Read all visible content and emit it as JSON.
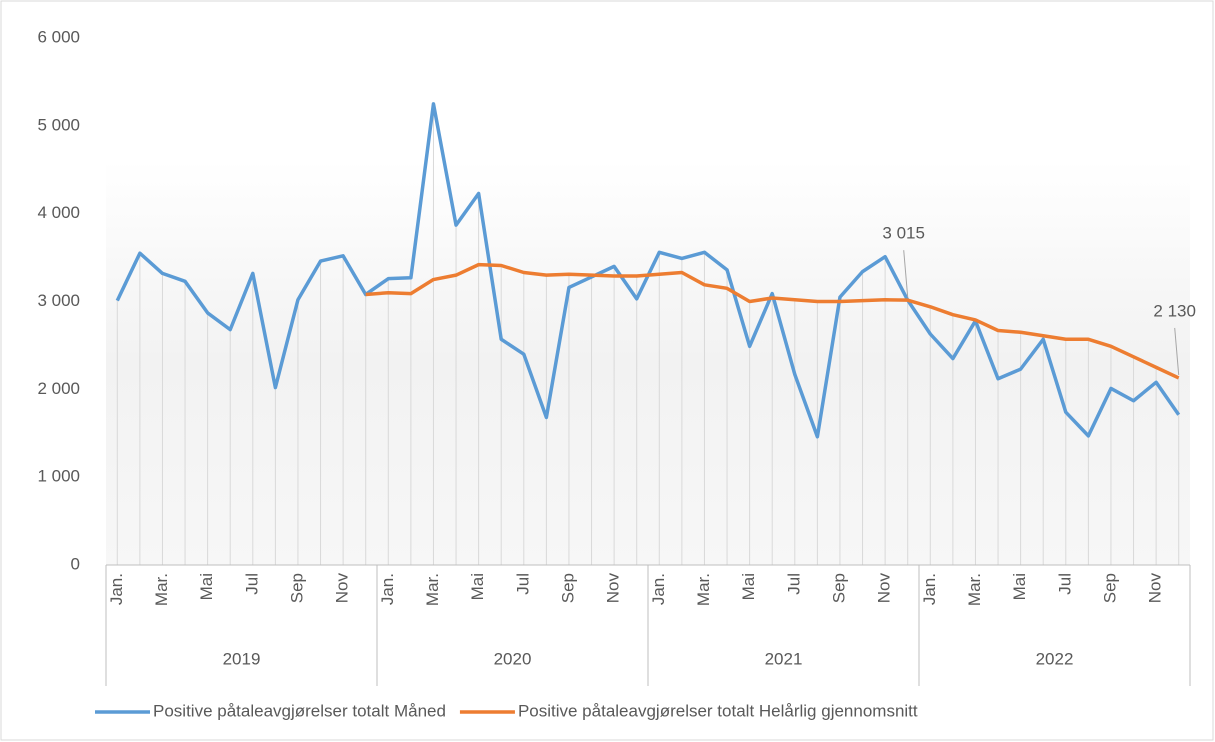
{
  "chart_data": {
    "type": "line",
    "categories": [
      "Jan.",
      null,
      "Mar.",
      null,
      "Mai",
      null,
      "Jul",
      null,
      "Sep",
      null,
      "Nov",
      null,
      "Jan.",
      null,
      "Mar.",
      null,
      "Mai",
      null,
      "Jul",
      null,
      "Sep",
      null,
      "Nov",
      null,
      "Jan.",
      null,
      "Mar.",
      null,
      "Mai",
      null,
      "Jul",
      null,
      "Sep",
      null,
      "Nov",
      null,
      "Jan.",
      null,
      "Mar.",
      null,
      "Mai",
      null,
      "Jul",
      null,
      "Sep",
      null,
      "Nov",
      null
    ],
    "year_groups": [
      "2019",
      "2020",
      "2021",
      "2022"
    ],
    "series": [
      {
        "name": "Positive påtaleavgjørelser totalt Måned",
        "color": "#5b9bd5",
        "values": [
          3010,
          3550,
          3320,
          3230,
          2870,
          2680,
          3320,
          2020,
          3020,
          3460,
          3520,
          3080,
          3260,
          3270,
          5250,
          3870,
          4230,
          2570,
          2400,
          1680,
          3160,
          3280,
          3400,
          3030,
          3560,
          3490,
          3560,
          3360,
          2490,
          3090,
          2170,
          1460,
          3050,
          3340,
          3510,
          3015,
          2630,
          2350,
          2780,
          2120,
          2230,
          2570,
          1740,
          1470,
          2010,
          1870,
          2080,
          1710
        ]
      },
      {
        "name": "Positive påtaleavgjørelser totalt Helårlig gjennomsnitt",
        "color": "#ed7d31",
        "values": [
          null,
          null,
          null,
          null,
          null,
          null,
          null,
          null,
          null,
          null,
          null,
          3080,
          3100,
          3090,
          3250,
          3300,
          3420,
          3410,
          3330,
          3300,
          3310,
          3300,
          3290,
          3290,
          3310,
          3330,
          3190,
          3150,
          3000,
          3040,
          3020,
          3000,
          3000,
          3010,
          3020,
          3015,
          2940,
          2850,
          2790,
          2670,
          2650,
          2610,
          2570,
          2570,
          2490,
          2370,
          2250,
          2130
        ],
        "value_labels": [
          null,
          null,
          null,
          null,
          null,
          null,
          null,
          null,
          null,
          null,
          null,
          null,
          null,
          null,
          null,
          null,
          null,
          null,
          null,
          null,
          null,
          null,
          null,
          null,
          null,
          null,
          null,
          null,
          null,
          null,
          null,
          null,
          null,
          null,
          null,
          "3 015",
          null,
          null,
          null,
          null,
          null,
          null,
          null,
          null,
          null,
          null,
          null,
          "2 130"
        ]
      }
    ],
    "ylim": [
      0,
      6000
    ],
    "yticks": [
      0,
      {
        "value": 1000,
        "label": "1 000"
      },
      {
        "value": 2000,
        "label": "2 000"
      },
      {
        "value": 3000,
        "label": "3 000"
      },
      {
        "value": 4000,
        "label": "4 000"
      },
      {
        "value": 5000,
        "label": "5 000"
      },
      {
        "value": 6000,
        "label": "6 000"
      }
    ],
    "legend": "bottom"
  }
}
